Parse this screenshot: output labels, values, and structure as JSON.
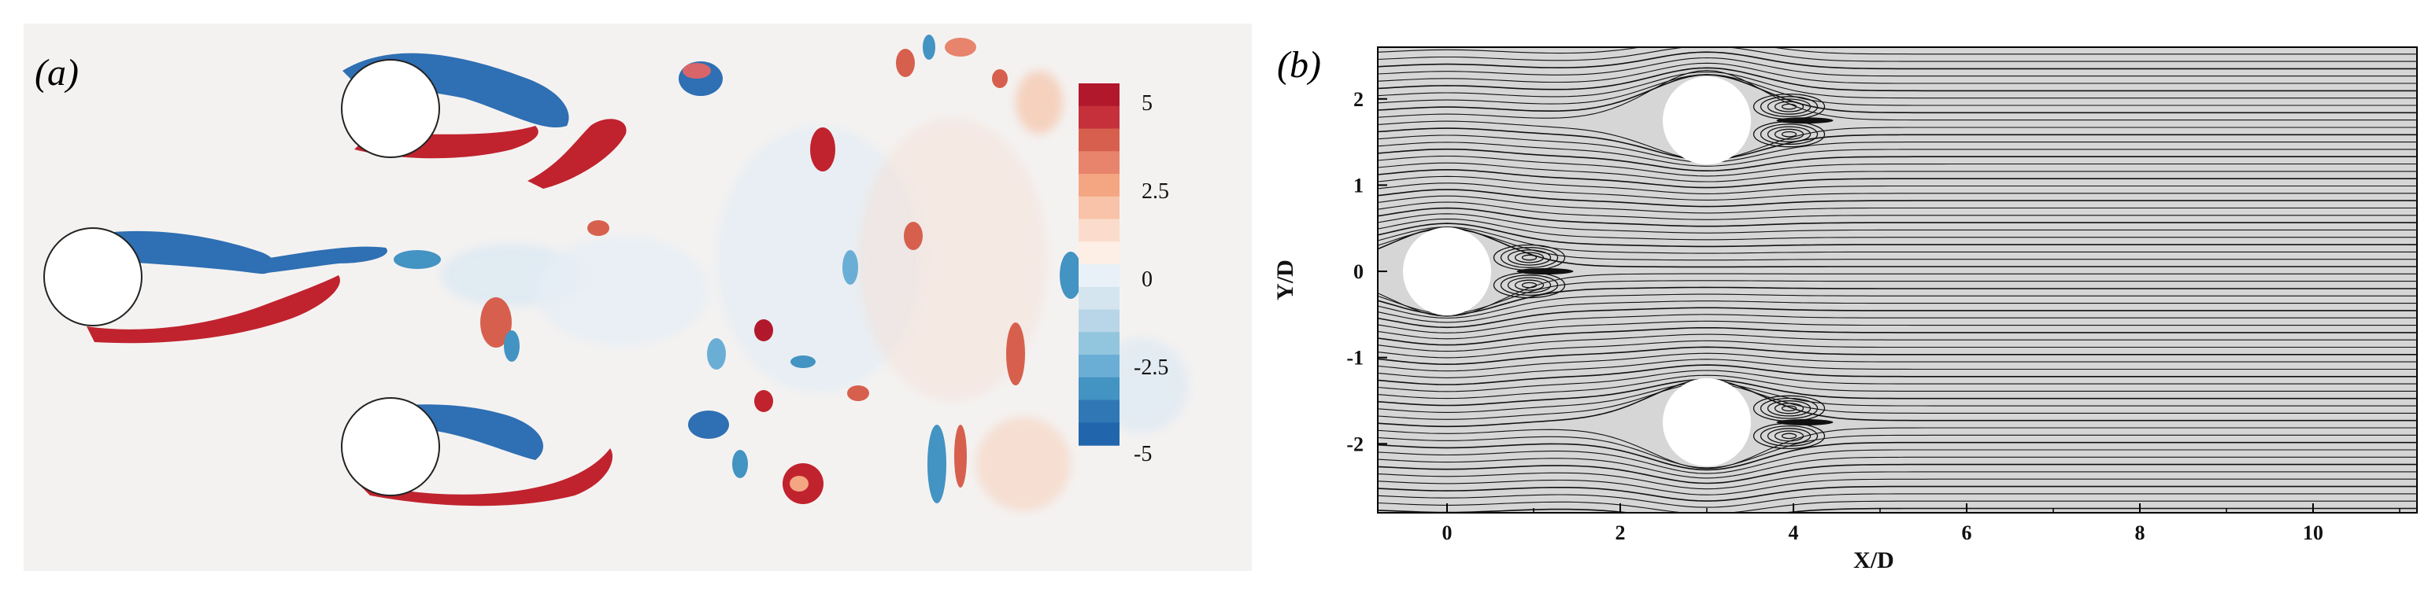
{
  "figure": {
    "panel_a": {
      "label": "(a)",
      "colorbar": {
        "ticks": [
          "5",
          "2.5",
          "0",
          "-2.5",
          "-5"
        ],
        "colors": [
          "#b2182b",
          "#c5303a",
          "#d6604d",
          "#e7846b",
          "#f4a582",
          "#f8c3a8",
          "#fbdccc",
          "#fdeee6",
          "#e8f1f7",
          "#d4e5f0",
          "#b8d6e8",
          "#92c5de",
          "#6aaed6",
          "#4393c3",
          "#2f78b5",
          "#2166ac"
        ]
      }
    },
    "panel_b": {
      "label": "(b)",
      "xlabel": "X/D",
      "ylabel": "Y/D"
    }
  },
  "chart_data": {
    "type": "streamline",
    "xlabel": "X/D",
    "ylabel": "Y/D",
    "xlim": [
      -0.8,
      11.2
    ],
    "ylim": [
      -2.8,
      2.6
    ],
    "xticks": [
      0,
      2,
      4,
      6,
      8,
      10
    ],
    "yticks": [
      2,
      1,
      0,
      -1,
      -2
    ],
    "cylinders": [
      {
        "x": 0,
        "y": 0,
        "d": 1
      },
      {
        "x": 3,
        "y": 1.75,
        "d": 1
      },
      {
        "x": 3,
        "y": -1.75,
        "d": 1
      }
    ]
  }
}
